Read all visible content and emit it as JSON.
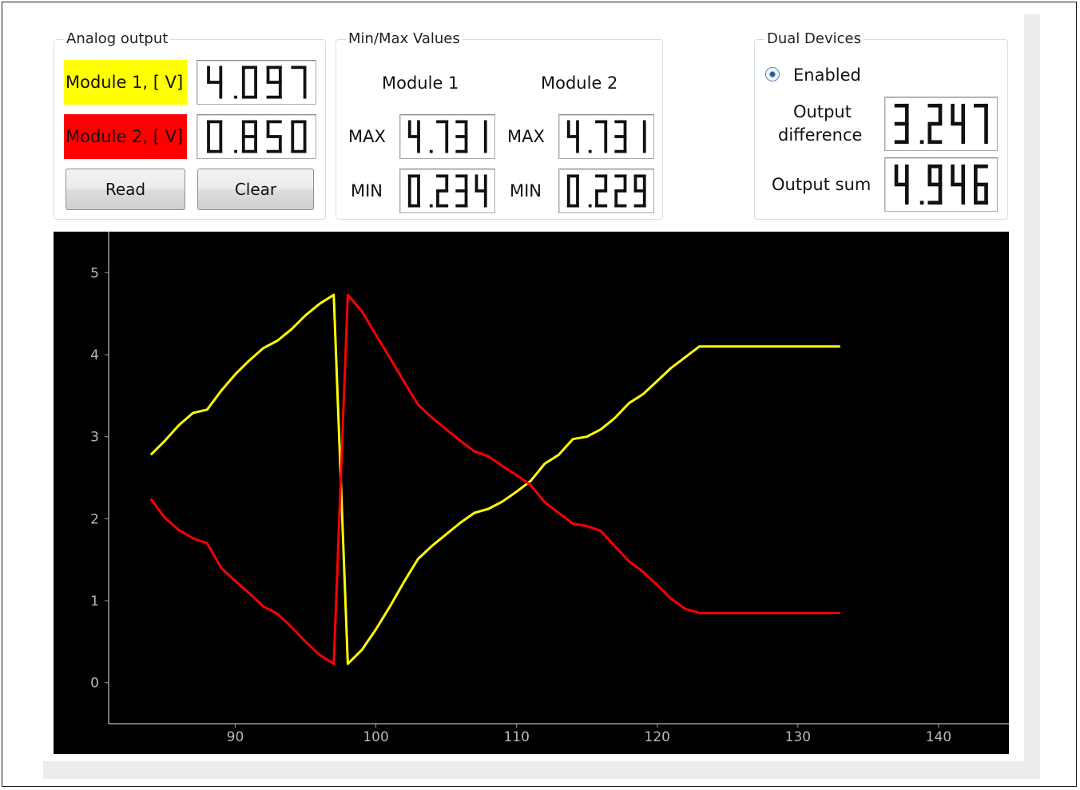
{
  "analog_output": {
    "title": "Analog output",
    "module1_label": "Module 1, [ V]",
    "module1_value": "4.097",
    "module2_label": "Module 2, [ V]",
    "module2_value": "0.850",
    "read_label": "Read",
    "clear_label": "Clear",
    "module1_color": "#ffff00",
    "module2_color": "#ff0000"
  },
  "minmax": {
    "title": "Min/Max Values",
    "module1_header": "Module 1",
    "module2_header": "Module 2",
    "max_label": "MAX",
    "min_label": "MIN",
    "module1_max": "4.731",
    "module1_min": "0.234",
    "module2_max": "4.731",
    "module2_min": "0.229"
  },
  "dual_devices": {
    "title": "Dual Devices",
    "enabled_label": "Enabled",
    "enabled": true,
    "output_difference_label_line1": "Output",
    "output_difference_label_line2": "difference",
    "output_difference_value": "3.247",
    "output_sum_label": "Output sum",
    "output_sum_value": "4.946"
  },
  "chart_data": {
    "type": "line",
    "background": "#000000",
    "xlim": [
      81,
      145
    ],
    "ylim": [
      -0.5,
      5.5
    ],
    "x_ticks": [
      90,
      100,
      110,
      120,
      130,
      140
    ],
    "y_ticks": [
      0,
      1,
      2,
      3,
      4,
      5
    ],
    "grid": false,
    "series": [
      {
        "color": "#ffff00",
        "points": [
          [
            84,
            2.78
          ],
          [
            85,
            2.95
          ],
          [
            86,
            3.14
          ],
          [
            87,
            3.29
          ],
          [
            88,
            3.33
          ],
          [
            89,
            3.56
          ],
          [
            90,
            3.76
          ],
          [
            91,
            3.93
          ],
          [
            92,
            4.08
          ],
          [
            93,
            4.17
          ],
          [
            94,
            4.31
          ],
          [
            95,
            4.48
          ],
          [
            96,
            4.62
          ],
          [
            97,
            4.73
          ],
          [
            98,
            0.23
          ],
          [
            99,
            0.4
          ],
          [
            100,
            0.65
          ],
          [
            101,
            0.93
          ],
          [
            102,
            1.23
          ],
          [
            103,
            1.51
          ],
          [
            104,
            1.67
          ],
          [
            105,
            1.81
          ],
          [
            106,
            1.95
          ],
          [
            107,
            2.07
          ],
          [
            108,
            2.12
          ],
          [
            109,
            2.21
          ],
          [
            110,
            2.33
          ],
          [
            111,
            2.46
          ],
          [
            112,
            2.67
          ],
          [
            113,
            2.78
          ],
          [
            114,
            2.97
          ],
          [
            115,
            3.0
          ],
          [
            116,
            3.09
          ],
          [
            117,
            3.23
          ],
          [
            118,
            3.41
          ],
          [
            119,
            3.52
          ],
          [
            120,
            3.68
          ],
          [
            121,
            3.84
          ],
          [
            122,
            3.97
          ],
          [
            123,
            4.1
          ],
          [
            128,
            4.1
          ],
          [
            133,
            4.1
          ]
        ]
      },
      {
        "color": "#ff0000",
        "points": [
          [
            84,
            2.24
          ],
          [
            85,
            2.01
          ],
          [
            86,
            1.86
          ],
          [
            87,
            1.76
          ],
          [
            88,
            1.7
          ],
          [
            89,
            1.4
          ],
          [
            90,
            1.24
          ],
          [
            91,
            1.09
          ],
          [
            92,
            0.93
          ],
          [
            93,
            0.84
          ],
          [
            94,
            0.68
          ],
          [
            95,
            0.5
          ],
          [
            96,
            0.34
          ],
          [
            97,
            0.23
          ],
          [
            98,
            4.73
          ],
          [
            99,
            4.53
          ],
          [
            100,
            4.24
          ],
          [
            101,
            3.96
          ],
          [
            102,
            3.67
          ],
          [
            103,
            3.39
          ],
          [
            104,
            3.23
          ],
          [
            105,
            3.09
          ],
          [
            106,
            2.95
          ],
          [
            107,
            2.82
          ],
          [
            108,
            2.76
          ],
          [
            109,
            2.64
          ],
          [
            110,
            2.53
          ],
          [
            111,
            2.41
          ],
          [
            112,
            2.2
          ],
          [
            113,
            2.07
          ],
          [
            114,
            1.94
          ],
          [
            115,
            1.91
          ],
          [
            116,
            1.85
          ],
          [
            117,
            1.66
          ],
          [
            118,
            1.48
          ],
          [
            119,
            1.35
          ],
          [
            120,
            1.19
          ],
          [
            121,
            1.02
          ],
          [
            122,
            0.9
          ],
          [
            123,
            0.85
          ],
          [
            128,
            0.85
          ],
          [
            133,
            0.85
          ]
        ]
      }
    ]
  }
}
